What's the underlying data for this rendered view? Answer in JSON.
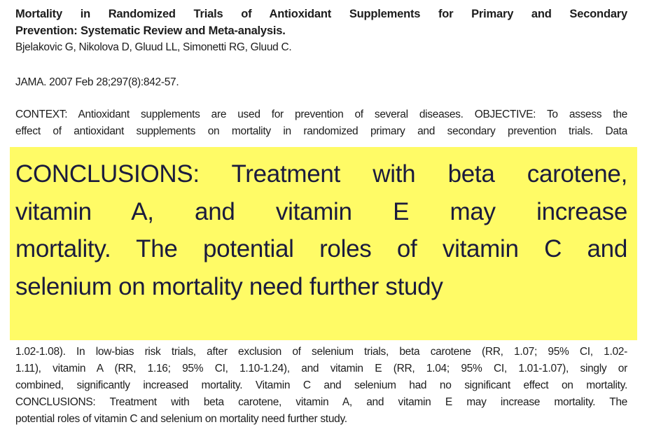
{
  "article": {
    "title_lines": [
      "Mortality in Randomized Trials of Antioxidant Supplements for Primary and Secondary",
      "Prevention: Systematic Review and Meta-analysis."
    ],
    "authors": "Bjelakovic G, Nikolova D, Gluud LL, Simonetti RG, Gluud C.",
    "journal": "JAMA. 2007 Feb 28;297(8):842-57.",
    "context_lines": [
      "CONTEXT: Antioxidant supplements are used for prevention of several diseases. OBJECTIVE: To assess the",
      "effect of antioxidant supplements on mortality in randomized primary and secondary prevention trials. Data"
    ],
    "results_lines": [
      "1.02-1.08). In low-bias risk trials, after exclusion of selenium trials, beta carotene (RR, 1.07; 95% CI, 1.02-",
      "1.11), vitamin A (RR, 1.16; 95% CI, 1.10-1.24), and vitamin E (RR, 1.04; 95% CI, 1.01-1.07), singly or",
      "combined, significantly increased mortality. Vitamin C and selenium had no significant effect on mortality.",
      "CONCLUSIONS: Treatment with beta carotene, vitamin A, and vitamin E may increase mortality. The",
      "potential roles of vitamin C and selenium on mortality need further study."
    ]
  },
  "highlight": {
    "color": "#fffb66",
    "lines": [
      "CONCLUSIONS: Treatment with beta carotene,",
      "vitamin A, and vitamin E may increase",
      "mortality. The potential roles of vitamin C and",
      "selenium on mortality need further study"
    ]
  }
}
